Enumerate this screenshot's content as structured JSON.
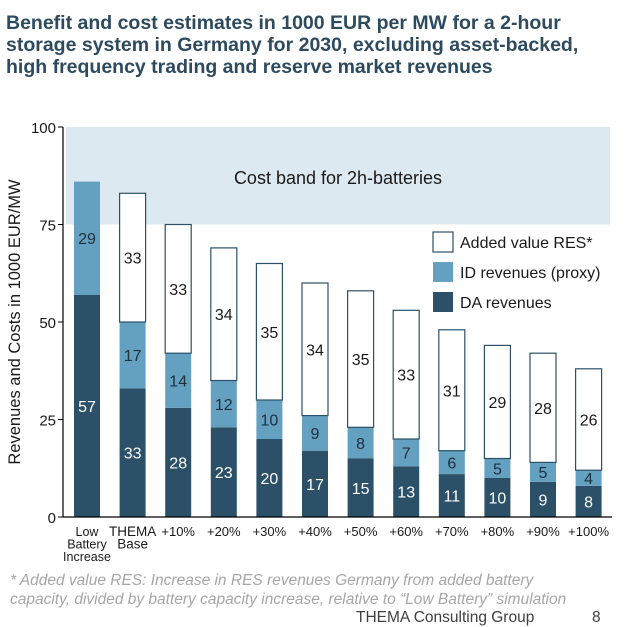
{
  "title_lines": [
    "Benefit and cost estimates in 1000 EUR per MW for a 2-hour",
    "storage system in Germany for 2030, excluding asset-backed,",
    "high frequency trading and reserve market revenues"
  ],
  "chart_data": {
    "type": "bar",
    "stacked": true,
    "title": "Benefit and cost estimates in 1000 EUR per MW for a 2-hour storage system in Germany for 2030, excluding asset-backed, high frequency trading and reserve market revenues",
    "xlabel": "",
    "ylabel": "Revenues and Costs in 1000 EUR/MW",
    "ylim": [
      0,
      100
    ],
    "yticks": [
      0,
      25,
      50,
      75,
      100
    ],
    "grid": false,
    "legend_position": "right",
    "categories": [
      [
        "Low",
        "Battery",
        "Increase"
      ],
      [
        "THEMA",
        "Base"
      ],
      [
        "+10%"
      ],
      [
        "+20%"
      ],
      [
        "+30%"
      ],
      [
        "+40%"
      ],
      [
        "+50%"
      ],
      [
        "+60%"
      ],
      [
        "+70%"
      ],
      [
        "+80%"
      ],
      [
        "+90%"
      ],
      [
        "+100%"
      ]
    ],
    "series": [
      {
        "name": "DA revenues",
        "color": "#2b5068",
        "label_color": "#ffffff",
        "outline": false,
        "values": [
          57,
          33,
          28,
          23,
          20,
          17,
          15,
          13,
          11,
          10,
          9,
          8
        ]
      },
      {
        "name": "ID revenues (proxy)",
        "color": "#64a0c0",
        "label_color": "#1f2f3c",
        "outline": false,
        "values": [
          29,
          17,
          14,
          12,
          10,
          9,
          8,
          7,
          6,
          5,
          5,
          4
        ]
      },
      {
        "name": "Added value RES*",
        "color": "#ffffff",
        "label_color": "#1a1a1a",
        "outline": true,
        "values": [
          0,
          33,
          33,
          34,
          35,
          34,
          35,
          33,
          31,
          29,
          28,
          26
        ]
      }
    ],
    "legend_order": [
      "Added value RES*",
      "ID revenues (proxy)",
      "DA revenues"
    ],
    "annotations": [
      {
        "type": "band",
        "y_from": 75,
        "y_to": 100,
        "color": "#dde9f0",
        "label": "Cost band for 2h-batteries"
      }
    ],
    "colors": {
      "axis": "#000000",
      "outline": "#2b5068",
      "tick_text": "#1a1a1a"
    }
  },
  "footnote_lines": [
    "* Added value RES: Increase in RES revenues Germany from added battery",
    "capacity, divided by battery capacity increase, relative to “Low Battery” simulation"
  ],
  "footer": {
    "organization": "THEMA Consulting Group",
    "page_number": "8"
  }
}
